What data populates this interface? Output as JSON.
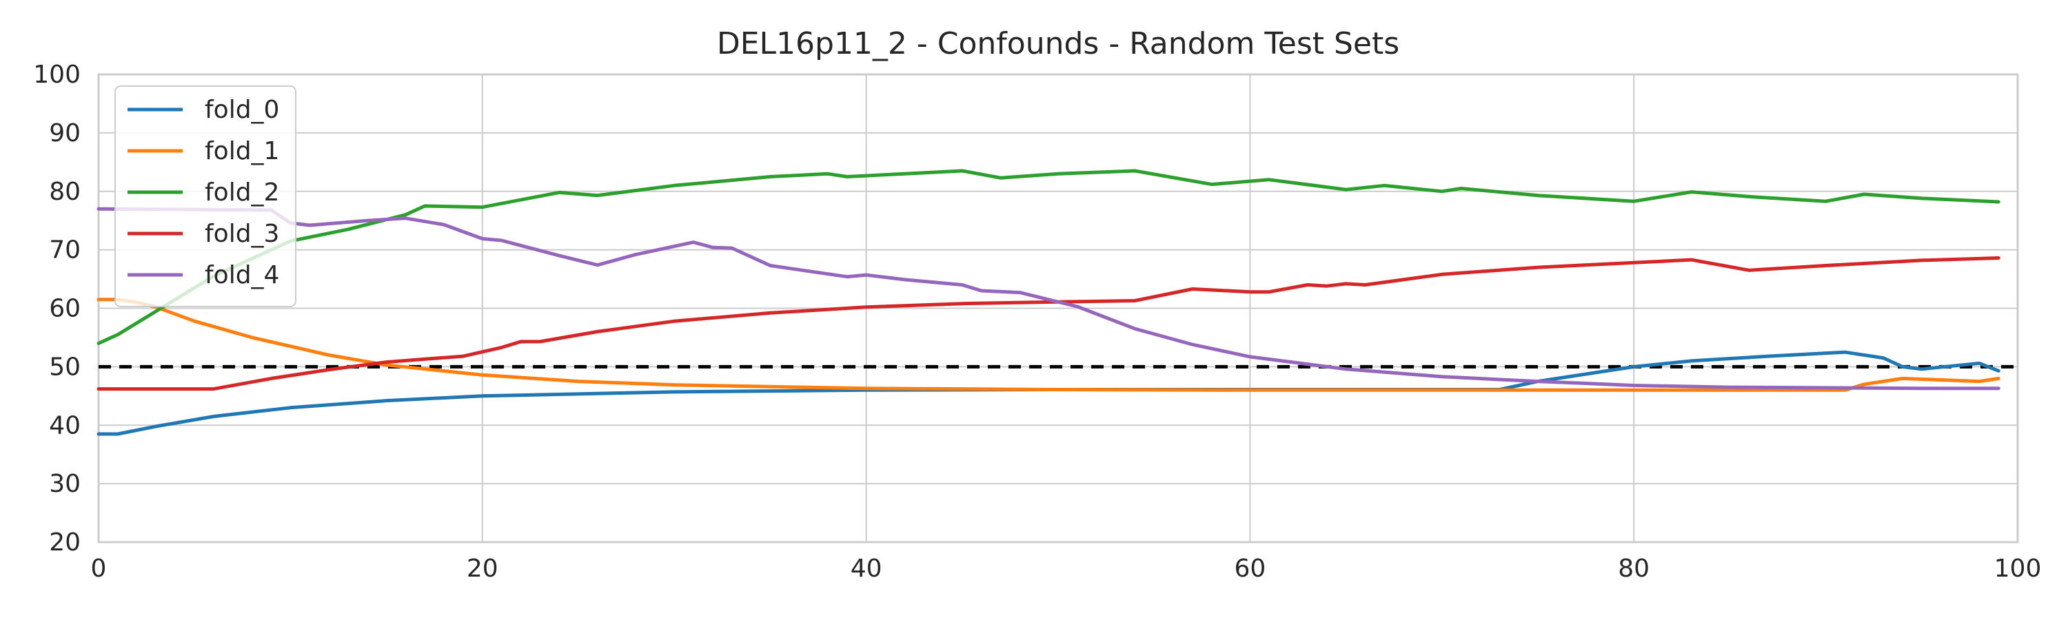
{
  "chart_data": {
    "type": "line",
    "title": "DEL16p11_2 - Confounds - Random Test Sets",
    "xlabel": "",
    "ylabel": "",
    "xlim": [
      0,
      100
    ],
    "ylim": [
      20,
      100
    ],
    "xticks": [
      0,
      20,
      40,
      60,
      80,
      100
    ],
    "yticks": [
      20,
      30,
      40,
      50,
      60,
      70,
      80,
      90,
      100
    ],
    "grid": true,
    "legend": "top-left",
    "reference_line": {
      "y": 50,
      "style": "dashed",
      "color": "#000000"
    },
    "series": [
      {
        "name": "fold_0",
        "color": "#1f77b4",
        "points": [
          [
            0,
            38.5
          ],
          [
            1,
            38.5
          ],
          [
            3,
            39.8
          ],
          [
            6,
            41.5
          ],
          [
            10,
            43.0
          ],
          [
            15,
            44.2
          ],
          [
            20,
            45.0
          ],
          [
            30,
            45.7
          ],
          [
            40,
            46.0
          ],
          [
            50,
            46.1
          ],
          [
            60,
            46.1
          ],
          [
            70,
            46.1
          ],
          [
            73,
            46.1
          ],
          [
            75,
            47.5
          ],
          [
            78,
            49.0
          ],
          [
            80,
            50.0
          ],
          [
            83,
            51.0
          ],
          [
            87,
            51.8
          ],
          [
            91,
            52.5
          ],
          [
            93,
            51.5
          ],
          [
            94,
            50.0
          ],
          [
            95,
            49.6
          ],
          [
            98,
            50.6
          ],
          [
            99,
            49.3
          ]
        ]
      },
      {
        "name": "fold_1",
        "color": "#ff7f0e",
        "points": [
          [
            0,
            61.5
          ],
          [
            1,
            61.5
          ],
          [
            2,
            61.0
          ],
          [
            3,
            60.2
          ],
          [
            5,
            57.8
          ],
          [
            8,
            55.0
          ],
          [
            12,
            52.0
          ],
          [
            15,
            50.3
          ],
          [
            20,
            48.6
          ],
          [
            25,
            47.5
          ],
          [
            30,
            46.9
          ],
          [
            40,
            46.3
          ],
          [
            50,
            46.1
          ],
          [
            60,
            46.0
          ],
          [
            70,
            46.0
          ],
          [
            80,
            46.0
          ],
          [
            91,
            46.0
          ],
          [
            92,
            47.0
          ],
          [
            94,
            48.0
          ],
          [
            98,
            47.5
          ],
          [
            99,
            48.0
          ]
        ]
      },
      {
        "name": "fold_2",
        "color": "#2ca02c",
        "points": [
          [
            0,
            54.0
          ],
          [
            1,
            55.5
          ],
          [
            3,
            59.5
          ],
          [
            6,
            65.5
          ],
          [
            8,
            68.5
          ],
          [
            10,
            71.5
          ],
          [
            13,
            73.5
          ],
          [
            16,
            76.0
          ],
          [
            17,
            77.5
          ],
          [
            20,
            77.3
          ],
          [
            24,
            79.8
          ],
          [
            26,
            79.3
          ],
          [
            30,
            81.0
          ],
          [
            35,
            82.5
          ],
          [
            38,
            83.0
          ],
          [
            39,
            82.5
          ],
          [
            42,
            83.0
          ],
          [
            45,
            83.5
          ],
          [
            47,
            82.3
          ],
          [
            50,
            83.0
          ],
          [
            54,
            83.5
          ],
          [
            58,
            81.2
          ],
          [
            61,
            82.0
          ],
          [
            65,
            80.3
          ],
          [
            67,
            81.0
          ],
          [
            70,
            80.0
          ],
          [
            71,
            80.5
          ],
          [
            75,
            79.3
          ],
          [
            80,
            78.3
          ],
          [
            83,
            79.9
          ],
          [
            86,
            79.1
          ],
          [
            90,
            78.3
          ],
          [
            92,
            79.5
          ],
          [
            95,
            78.8
          ],
          [
            99,
            78.2
          ]
        ]
      },
      {
        "name": "fold_3",
        "color": "#d62728",
        "points": [
          [
            0,
            46.2
          ],
          [
            6,
            46.2
          ],
          [
            9,
            48.0
          ],
          [
            12,
            49.5
          ],
          [
            15,
            50.8
          ],
          [
            17,
            51.3
          ],
          [
            19,
            51.8
          ],
          [
            21,
            53.3
          ],
          [
            22,
            54.3
          ],
          [
            23,
            54.3
          ],
          [
            26,
            56.0
          ],
          [
            30,
            57.8
          ],
          [
            35,
            59.2
          ],
          [
            40,
            60.2
          ],
          [
            45,
            60.8
          ],
          [
            50,
            61.1
          ],
          [
            54,
            61.3
          ],
          [
            57,
            63.3
          ],
          [
            60,
            62.8
          ],
          [
            61,
            62.8
          ],
          [
            63,
            64.0
          ],
          [
            64,
            63.8
          ],
          [
            65,
            64.2
          ],
          [
            66,
            64.0
          ],
          [
            70,
            65.8
          ],
          [
            75,
            67.0
          ],
          [
            80,
            67.8
          ],
          [
            83,
            68.3
          ],
          [
            86,
            66.5
          ],
          [
            90,
            67.3
          ],
          [
            95,
            68.2
          ],
          [
            99,
            68.6
          ]
        ]
      },
      {
        "name": "fold_4",
        "color": "#9467bd",
        "points": [
          [
            0,
            77.0
          ],
          [
            9,
            76.8
          ],
          [
            10,
            74.6
          ],
          [
            11,
            74.2
          ],
          [
            14,
            75.0
          ],
          [
            16,
            75.4
          ],
          [
            18,
            74.3
          ],
          [
            20,
            71.9
          ],
          [
            21,
            71.6
          ],
          [
            24,
            69.0
          ],
          [
            26,
            67.4
          ],
          [
            28,
            69.2
          ],
          [
            31,
            71.3
          ],
          [
            32,
            70.4
          ],
          [
            33,
            70.3
          ],
          [
            35,
            67.3
          ],
          [
            39,
            65.4
          ],
          [
            40,
            65.7
          ],
          [
            42,
            64.9
          ],
          [
            45,
            64.0
          ],
          [
            46,
            63.0
          ],
          [
            48,
            62.7
          ],
          [
            51,
            60.3
          ],
          [
            54,
            56.5
          ],
          [
            57,
            53.8
          ],
          [
            60,
            51.7
          ],
          [
            65,
            49.6
          ],
          [
            70,
            48.3
          ],
          [
            75,
            47.5
          ],
          [
            80,
            46.8
          ],
          [
            85,
            46.5
          ],
          [
            90,
            46.4
          ],
          [
            95,
            46.3
          ],
          [
            99,
            46.3
          ]
        ]
      }
    ]
  }
}
